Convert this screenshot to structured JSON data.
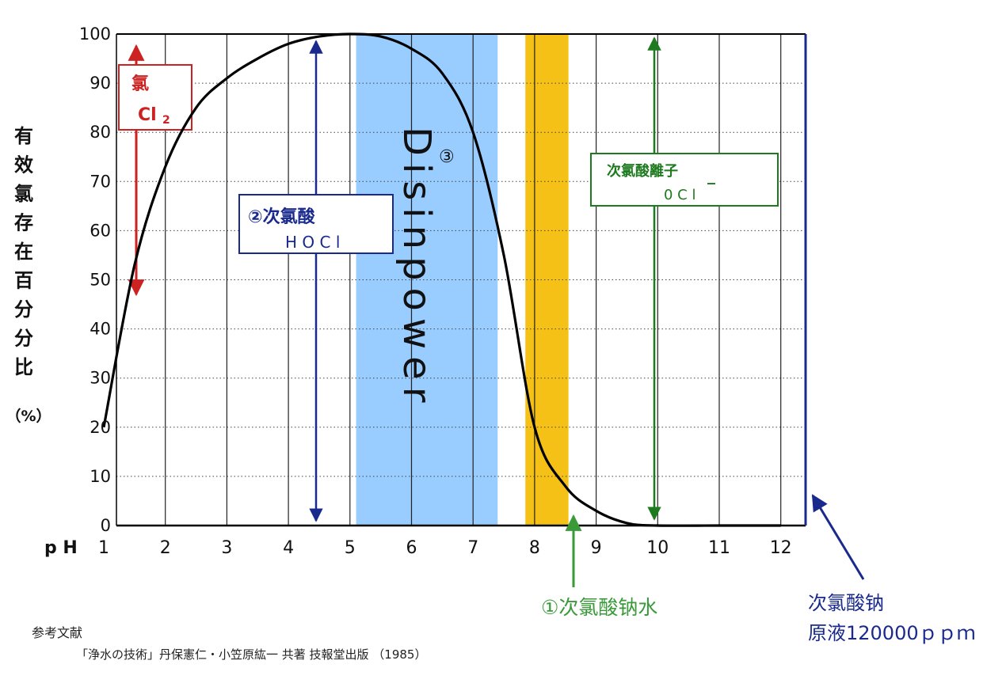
{
  "y_axis_label": "有效氯存在百分分比",
  "y_axis_unit": "（%）",
  "x_axis_prefix": "p H",
  "chart_data": {
    "type": "line",
    "x": [
      1,
      1.5,
      2,
      2.5,
      3,
      3.5,
      4,
      4.5,
      5,
      5.5,
      6,
      6.5,
      7,
      7.5,
      8,
      8.5,
      9,
      9.5,
      10,
      11,
      12
    ],
    "series": [
      {
        "values": [
          20,
          53,
          73,
          85,
          91,
          95,
          98,
          99.5,
          100,
          99.5,
          97,
          92,
          80,
          55,
          20,
          8,
          3,
          0.5,
          0,
          0,
          0
        ]
      }
    ],
    "xlabel": "p H",
    "ylabel": "有效氯存在百分分比 （%）",
    "xlim": [
      1,
      12.2
    ],
    "ylim": [
      0,
      100
    ],
    "x_ticks": [
      1,
      2,
      3,
      4,
      5,
      6,
      7,
      8,
      9,
      10,
      11,
      12
    ],
    "y_ticks": [
      0,
      10,
      20,
      30,
      40,
      50,
      60,
      70,
      80,
      90,
      100
    ],
    "grid": true,
    "bands": [
      {
        "from": 5.1,
        "to": 7.4,
        "color": "#99ccff"
      },
      {
        "from": 7.85,
        "to": 8.55,
        "color": "#f5c116"
      }
    ],
    "annotations": {
      "cl2": {
        "line1": "氯",
        "line2": "Cl",
        "sub": "2",
        "color": "#cc2222"
      },
      "hocl": {
        "line1": "②次氯酸",
        "line2": "H O C l",
        "color": "#1a2a8c"
      },
      "ocl": {
        "line1": "次氯酸離子",
        "minus": "_",
        "line2": "0 C l",
        "color": "#1e7a1e"
      },
      "disinpower": {
        "text": "Disinpower",
        "mark": "③",
        "color": "#111111"
      },
      "sodium_water": {
        "text": "①次氯酸钠水",
        "color": "#3a9a3a"
      },
      "stock": {
        "line1": "次氯酸钠",
        "line2": "原液120000ｐｐｍ",
        "color": "#1a2a8c"
      }
    }
  },
  "reference": {
    "title": "参考文献",
    "citation": "「浄水の技術」丹保憲仁・小笠原紘一  共著  技報堂出版 （1985）"
  }
}
